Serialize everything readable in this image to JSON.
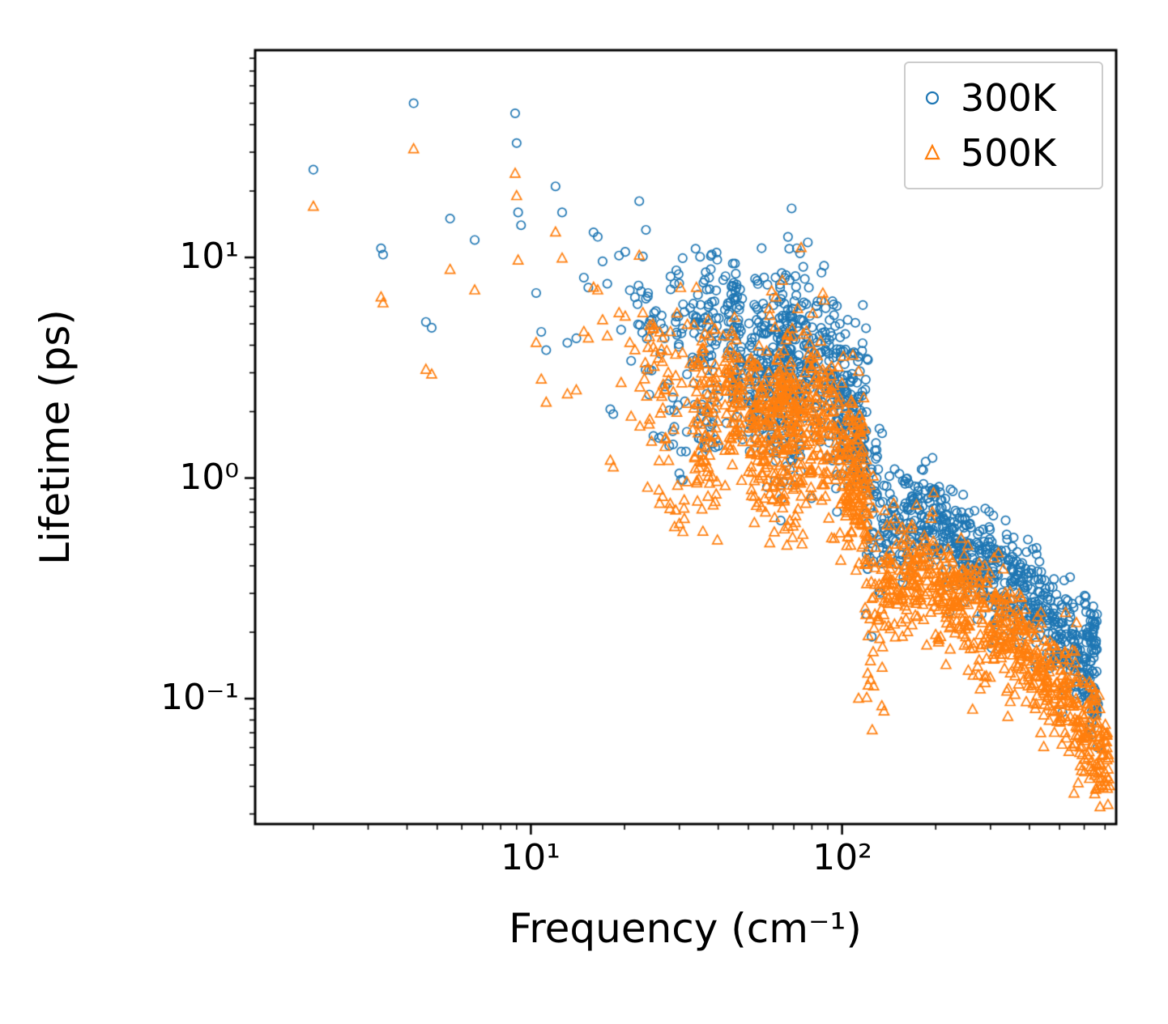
{
  "chart_data": {
    "type": "scatter",
    "title": "",
    "xlabel": "Frequency (cm⁻¹)",
    "ylabel": "Lifetime (ps)",
    "xscale": "log",
    "yscale": "log",
    "xlim": [
      1.3,
      760
    ],
    "ylim": [
      0.027,
      87
    ],
    "grid": false,
    "legend_position": "upper right",
    "legend_border_color": "#cccccc",
    "background_color": "#ffffff",
    "axis_color": "#000000",
    "x_major_ticks": [
      {
        "value": 10,
        "label": "10¹"
      },
      {
        "value": 100,
        "label": "10²"
      }
    ],
    "x_minor_ticks": [
      2,
      3,
      4,
      5,
      6,
      7,
      8,
      9,
      20,
      30,
      40,
      50,
      60,
      70,
      80,
      90,
      200,
      300,
      400,
      500,
      600,
      700
    ],
    "y_major_ticks": [
      {
        "value": 10,
        "label": "10¹"
      },
      {
        "value": 1,
        "label": "10⁰"
      },
      {
        "value": 0.1,
        "label": "10⁻¹"
      }
    ],
    "y_minor_ticks": [
      0.03,
      0.04,
      0.05,
      0.06,
      0.07,
      0.08,
      0.09,
      0.2,
      0.3,
      0.4,
      0.5,
      0.6,
      0.7,
      0.8,
      0.9,
      2,
      3,
      4,
      5,
      6,
      7,
      8,
      9,
      20,
      30,
      40,
      50,
      60,
      70,
      80
    ],
    "random_seed": 12345,
    "marker_size_px": 5.2,
    "marker_stroke_px": 1.7,
    "series": [
      {
        "name": "300K",
        "marker": "circle",
        "color": "#1f77b4",
        "points": [
          [
            2.0,
            25
          ],
          [
            3.3,
            11
          ],
          [
            3.35,
            10.3
          ],
          [
            4.2,
            50
          ],
          [
            4.6,
            5.1
          ],
          [
            4.8,
            4.8
          ],
          [
            5.5,
            15
          ],
          [
            6.6,
            12
          ],
          [
            8.9,
            45
          ],
          [
            9.0,
            33
          ],
          [
            9.1,
            16
          ],
          [
            9.3,
            14
          ],
          [
            10.4,
            6.9
          ],
          [
            10.8,
            4.6
          ],
          [
            11.2,
            3.8
          ],
          [
            12.0,
            21
          ],
          [
            12.6,
            16
          ],
          [
            13.1,
            4.1
          ],
          [
            14.0,
            4.3
          ],
          [
            14.8,
            8.1
          ],
          [
            15.3,
            7.3
          ],
          [
            15.9,
            13
          ],
          [
            16.4,
            12.4
          ],
          [
            17.0,
            9.6
          ],
          [
            17.6,
            7.6
          ],
          [
            18.0,
            2.05
          ],
          [
            18.4,
            1.95
          ],
          [
            19.2,
            10.2
          ],
          [
            19.5,
            4.7
          ],
          [
            20.1,
            10.6
          ],
          [
            20.8,
            7.1
          ],
          [
            21.0,
            3.4
          ],
          [
            21.6,
            6.6
          ],
          [
            22.3,
            18
          ],
          [
            22.9,
            10.1
          ],
          [
            23.8,
            6.9
          ],
          [
            24.0,
            3.1
          ],
          [
            24.9,
            5.6
          ],
          [
            25.8,
            1.52
          ],
          [
            26.9,
            4.3
          ],
          [
            27.0,
            2.6
          ],
          [
            28.1,
            8.2
          ],
          [
            29.2,
            5.1
          ],
          [
            30.0,
            1.05
          ],
          [
            30.8,
            0.98
          ],
          [
            31.7,
            1.62
          ],
          [
            32.5,
            5.9
          ],
          [
            33.6,
            2.15
          ],
          [
            35.1,
            6.1
          ],
          [
            36.2,
            7.9
          ],
          [
            37.4,
            8.1
          ],
          [
            38.3,
            2.55
          ],
          [
            39.1,
            1.38
          ],
          [
            40.2,
            5.3
          ],
          [
            41.5,
            7.9
          ],
          [
            43.0,
            6.2
          ],
          [
            120,
            0.45
          ],
          [
            126,
            0.42
          ],
          [
            660,
            0.086
          ]
        ],
        "clusters": [
          [
            22,
            32,
            5.5,
            5.0,
            0.15,
            40
          ],
          [
            24,
            32,
            1.7,
            1.5,
            0.12,
            14
          ],
          [
            33,
            40,
            4.5,
            4.2,
            0.18,
            60
          ],
          [
            34,
            40,
            1.8,
            1.7,
            0.1,
            22
          ],
          [
            42,
            48,
            4.0,
            3.6,
            0.2,
            70
          ],
          [
            44,
            46,
            7.6,
            7.2,
            0.04,
            10
          ],
          [
            50,
            60,
            3.2,
            2.8,
            0.22,
            110
          ],
          [
            60,
            75,
            2.8,
            2.6,
            0.25,
            140
          ],
          [
            62,
            70,
            4.5,
            4.2,
            0.12,
            45
          ],
          [
            75,
            95,
            3.5,
            3.0,
            0.2,
            120
          ],
          [
            95,
            120,
            2.5,
            1.8,
            0.18,
            130
          ],
          [
            100,
            120,
            1.5,
            1.3,
            0.1,
            40
          ],
          [
            118,
            135,
            0.8,
            0.6,
            0.25,
            50
          ],
          [
            135,
            200,
            0.62,
            0.68,
            0.12,
            150
          ],
          [
            200,
            260,
            0.6,
            0.45,
            0.12,
            120
          ],
          [
            260,
            340,
            0.42,
            0.35,
            0.13,
            110
          ],
          [
            340,
            440,
            0.33,
            0.26,
            0.13,
            110
          ],
          [
            440,
            560,
            0.24,
            0.17,
            0.12,
            100
          ],
          [
            560,
            660,
            0.16,
            0.12,
            0.12,
            80
          ],
          [
            600,
            660,
            0.2,
            0.22,
            0.08,
            28
          ],
          [
            640,
            665,
            0.1,
            0.09,
            0.05,
            12
          ]
        ]
      },
      {
        "name": "500K",
        "marker": "triangle",
        "color": "#ff7f0e",
        "points": [
          [
            2.0,
            17
          ],
          [
            3.3,
            6.6
          ],
          [
            3.35,
            6.2
          ],
          [
            4.2,
            31
          ],
          [
            4.6,
            3.1
          ],
          [
            4.8,
            2.95
          ],
          [
            5.5,
            8.8
          ],
          [
            6.6,
            7.1
          ],
          [
            8.9,
            24
          ],
          [
            9.0,
            19
          ],
          [
            9.1,
            9.7
          ],
          [
            10.4,
            4.1
          ],
          [
            10.8,
            2.8
          ],
          [
            11.2,
            2.2
          ],
          [
            12.0,
            13
          ],
          [
            12.6,
            9.9
          ],
          [
            13.1,
            2.4
          ],
          [
            14.0,
            2.5
          ],
          [
            14.8,
            4.6
          ],
          [
            15.3,
            4.3
          ],
          [
            15.9,
            7.3
          ],
          [
            16.4,
            7.1
          ],
          [
            17.0,
            5.2
          ],
          [
            17.6,
            4.4
          ],
          [
            18.0,
            1.2
          ],
          [
            18.4,
            1.12
          ],
          [
            19.2,
            5.6
          ],
          [
            19.5,
            2.7
          ],
          [
            20.1,
            5.4
          ],
          [
            20.8,
            4.1
          ],
          [
            21.0,
            1.9
          ],
          [
            21.6,
            3.8
          ],
          [
            22.3,
            10.2
          ],
          [
            22.9,
            5.6
          ],
          [
            23.8,
            3.9
          ],
          [
            24.0,
            1.75
          ],
          [
            24.9,
            3.2
          ],
          [
            25.8,
            0.88
          ],
          [
            26.9,
            2.5
          ],
          [
            27.0,
            1.5
          ],
          [
            28.1,
            4.6
          ],
          [
            29.2,
            2.9
          ],
          [
            30.0,
            0.62
          ],
          [
            30.8,
            0.57
          ],
          [
            31.7,
            0.96
          ],
          [
            32.5,
            3.3
          ],
          [
            33.6,
            1.25
          ],
          [
            35.1,
            3.5
          ],
          [
            36.2,
            4.5
          ],
          [
            37.4,
            4.4
          ],
          [
            38.3,
            1.45
          ],
          [
            39.1,
            0.78
          ],
          [
            40.2,
            3.0
          ],
          [
            41.5,
            4.4
          ],
          [
            43.0,
            3.5
          ],
          [
            113,
            0.1
          ],
          [
            125,
            0.072
          ],
          [
            700,
            0.042
          ]
        ],
        "clusters": [
          [
            22,
            32,
            3.2,
            2.9,
            0.18,
            40
          ],
          [
            24,
            32,
            0.95,
            0.85,
            0.15,
            14
          ],
          [
            33,
            40,
            2.6,
            2.4,
            0.2,
            60
          ],
          [
            34,
            40,
            1.0,
            0.95,
            0.12,
            22
          ],
          [
            42,
            48,
            2.2,
            2.0,
            0.2,
            70
          ],
          [
            50,
            60,
            1.8,
            1.6,
            0.22,
            110
          ],
          [
            60,
            75,
            1.6,
            1.5,
            0.25,
            140
          ],
          [
            62,
            70,
            2.6,
            2.4,
            0.12,
            42
          ],
          [
            75,
            95,
            2.0,
            1.7,
            0.2,
            120
          ],
          [
            95,
            120,
            1.4,
            1.0,
            0.18,
            130
          ],
          [
            100,
            122,
            0.85,
            0.7,
            0.12,
            40
          ],
          [
            118,
            138,
            0.33,
            0.24,
            0.3,
            55
          ],
          [
            138,
            200,
            0.35,
            0.38,
            0.13,
            150
          ],
          [
            200,
            260,
            0.34,
            0.26,
            0.13,
            120
          ],
          [
            260,
            340,
            0.24,
            0.2,
            0.14,
            110
          ],
          [
            340,
            440,
            0.19,
            0.14,
            0.14,
            110
          ],
          [
            440,
            560,
            0.13,
            0.095,
            0.13,
            100
          ],
          [
            560,
            680,
            0.085,
            0.062,
            0.13,
            90
          ],
          [
            680,
            725,
            0.06,
            0.05,
            0.1,
            25
          ],
          [
            640,
            700,
            0.045,
            0.04,
            0.05,
            12
          ]
        ]
      }
    ]
  }
}
